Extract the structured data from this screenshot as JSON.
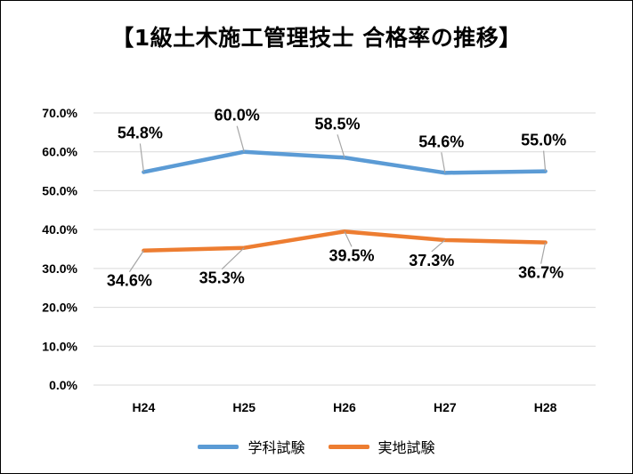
{
  "colors": {
    "series_1": "#5B9BD5",
    "series_2": "#ED7D31",
    "grid": "#D9D9D9",
    "leader": "#A6A6A6"
  },
  "chart_data": {
    "type": "line",
    "title": "【1級土木施工管理技士 合格率の推移】",
    "xlabel": "",
    "ylabel": "",
    "categories": [
      "H24",
      "H25",
      "H26",
      "H27",
      "H28"
    ],
    "ylim": [
      0,
      70
    ],
    "yticks": [
      0,
      10,
      20,
      30,
      40,
      50,
      60,
      70
    ],
    "ytick_labels": [
      "0.0%",
      "10.0%",
      "20.0%",
      "30.0%",
      "40.0%",
      "50.0%",
      "60.0%",
      "70.0%"
    ],
    "grid": true,
    "legend_position": "bottom",
    "series": [
      {
        "name": "学科試験",
        "values": [
          54.8,
          60.0,
          58.5,
          54.6,
          55.0
        ],
        "labels": [
          "54.8%",
          "60.0%",
          "58.5%",
          "54.6%",
          "55.0%"
        ],
        "label_position": "above"
      },
      {
        "name": "実地試験",
        "values": [
          34.6,
          35.3,
          39.5,
          37.3,
          36.7
        ],
        "labels": [
          "34.6%",
          "35.3%",
          "39.5%",
          "37.3%",
          "36.7%"
        ],
        "label_position": "below"
      }
    ]
  }
}
